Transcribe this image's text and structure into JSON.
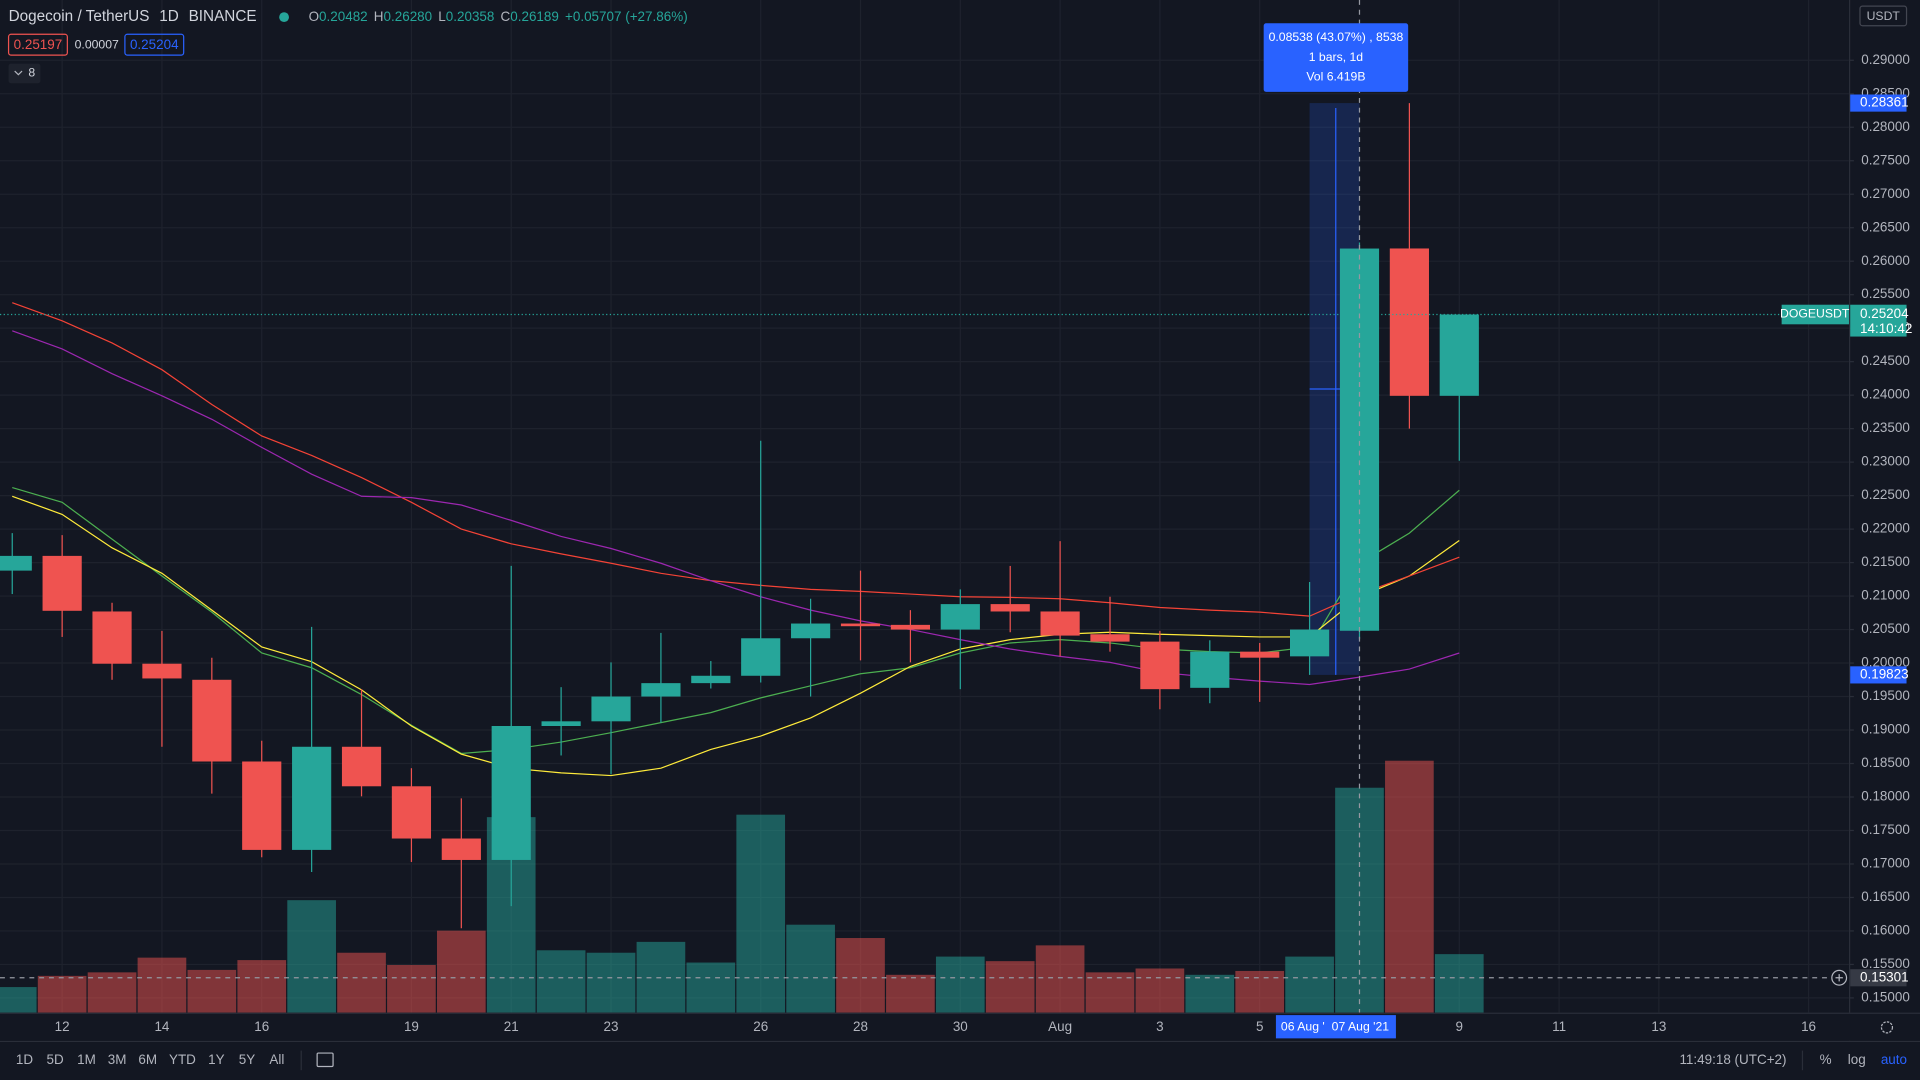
{
  "header": {
    "symbol": "Dogecoin / TetherUS",
    "interval": "1D",
    "exchange": "BINANCE",
    "ohlc": [
      {
        "key": "O",
        "value": "0.20482"
      },
      {
        "key": "H",
        "value": "0.26280"
      },
      {
        "key": "L",
        "value": "0.20358"
      },
      {
        "key": "C",
        "value": "0.26189"
      }
    ],
    "change": "+0.05707 (+27.86%)",
    "bid": "0.25197",
    "spread": "0.00007",
    "ask": "0.25204",
    "indicators": "8"
  },
  "toolbar": {
    "ranges": [
      "1D",
      "5D",
      "1M",
      "3M",
      "6M",
      "YTD",
      "1Y",
      "5Y",
      "All"
    ],
    "clock": "11:49:18 (UTC+2)",
    "percent": "%",
    "log": "log",
    "auto": "auto"
  },
  "chart_data": {
    "type": "candlestick",
    "currency": "USDT",
    "categories": [
      null,
      "12",
      null,
      "14",
      null,
      "16",
      null,
      null,
      "19",
      null,
      "21",
      null,
      "23",
      null,
      null,
      "26",
      null,
      "28",
      null,
      "30",
      null,
      "Aug",
      null,
      "3",
      null,
      "5",
      null,
      null,
      null,
      "9",
      null,
      "11",
      null,
      "13",
      null,
      null,
      "16"
    ],
    "open": [
      0.2138,
      0.216,
      0.2077,
      0.1999,
      0.1975,
      0.1853,
      0.1721,
      0.1875,
      0.1816,
      0.1738,
      0.1706,
      0.1906,
      0.1913,
      0.195,
      0.197,
      0.1981,
      0.2037,
      0.2059,
      0.2057,
      0.205,
      0.2088,
      0.2077,
      0.2043,
      0.2032,
      0.1963,
      0.2017,
      0.201,
      0.20482,
      0.2619,
      0.2399,
      null,
      null,
      null,
      null,
      null,
      null,
      null
    ],
    "high": [
      0.2194,
      0.2191,
      0.209,
      0.2048,
      0.2008,
      0.1884,
      0.2054,
      0.1961,
      0.1843,
      0.1798,
      0.2145,
      0.1964,
      0.2001,
      0.2045,
      0.2003,
      0.2332,
      0.2096,
      0.2138,
      0.2079,
      0.211,
      0.2145,
      0.2182,
      0.2099,
      0.2048,
      0.2034,
      0.203,
      0.2121,
      0.2628,
      0.2836,
      0.25204,
      null,
      null,
      null,
      null,
      null,
      null,
      null
    ],
    "low": [
      0.2103,
      0.2039,
      0.1975,
      0.1875,
      0.1805,
      0.171,
      0.1688,
      0.1801,
      0.1703,
      0.1604,
      0.1637,
      0.1862,
      0.1834,
      0.1911,
      0.1962,
      0.1971,
      0.195,
      0.2004,
      0.2001,
      0.1961,
      0.2046,
      0.201,
      0.2017,
      0.1931,
      0.194,
      0.1942,
      0.19823,
      0.20358,
      0.235,
      0.2302,
      null,
      null,
      null,
      null,
      null,
      null,
      null
    ],
    "close": [
      0.216,
      0.2078,
      0.1999,
      0.1977,
      0.1853,
      0.1721,
      0.1875,
      0.1816,
      0.1738,
      0.1706,
      0.1906,
      0.1913,
      0.195,
      0.197,
      0.1981,
      0.2037,
      0.2059,
      0.2055,
      0.205,
      0.2088,
      0.2077,
      0.2041,
      0.2032,
      0.1961,
      0.2017,
      0.2008,
      0.205,
      0.26189,
      0.2399,
      0.25204,
      null,
      null,
      null,
      null,
      null,
      null,
      null
    ],
    "volume": [
      0.73,
      1.05,
      1.15,
      1.57,
      1.22,
      1.5,
      3.21,
      1.71,
      1.36,
      2.34,
      5.58,
      1.78,
      1.71,
      2.02,
      1.43,
      5.65,
      2.51,
      2.13,
      1.08,
      1.6,
      1.47,
      1.92,
      1.15,
      1.26,
      1.08,
      1.19,
      1.6,
      6.419,
      7.19,
      1.67,
      null,
      null,
      null,
      null,
      null,
      null,
      null
    ],
    "volume_lim": [
      0,
      28.9
    ],
    "up_color": "#26a69a",
    "down_color": "#ef5350",
    "volume_up_color": "rgba(38,166,154,0.5)",
    "volume_down_color": "rgba(239,83,80,0.5)",
    "ma_lines": [
      {
        "color": "#4caf50",
        "values": [
          0.2262,
          0.224,
          0.2185,
          0.213,
          0.2076,
          0.2015,
          0.1993,
          0.1953,
          0.1907,
          0.1865,
          0.1871,
          0.1882,
          0.1896,
          0.1911,
          0.1926,
          0.1948,
          0.1966,
          0.1984,
          0.1993,
          0.2015,
          0.203,
          0.2035,
          0.203,
          0.2021,
          0.2017,
          0.2015,
          0.2024,
          0.2149,
          0.2194,
          0.2258,
          null,
          null,
          null,
          null,
          null,
          null,
          null
        ]
      },
      {
        "color": "#ffeb3b",
        "values": [
          0.2249,
          0.2222,
          0.2172,
          0.2134,
          0.2079,
          0.2024,
          0.2002,
          0.196,
          0.1906,
          0.1864,
          0.1843,
          0.1836,
          0.1832,
          0.1843,
          0.1871,
          0.1891,
          0.1918,
          0.1955,
          0.1995,
          0.2021,
          0.2035,
          0.2043,
          0.2046,
          0.2043,
          0.2041,
          0.2039,
          0.2039,
          0.2099,
          0.213,
          0.2183,
          null,
          null,
          null,
          null,
          null,
          null,
          null
        ]
      },
      {
        "color": "#f44336",
        "values": [
          0.2538,
          0.2511,
          0.2478,
          0.2438,
          0.2386,
          0.2339,
          0.231,
          0.2277,
          0.224,
          0.22,
          0.2178,
          0.2163,
          0.2149,
          0.2134,
          0.2123,
          0.2116,
          0.211,
          0.2107,
          0.2103,
          0.2099,
          0.2098,
          0.2096,
          0.209,
          0.2083,
          0.2079,
          0.2076,
          0.207,
          0.2103,
          0.213,
          0.2158,
          null,
          null,
          null,
          null,
          null,
          null,
          null
        ]
      },
      {
        "color": "#9c27b0",
        "values": [
          0.2496,
          0.2469,
          0.2432,
          0.2399,
          0.2364,
          0.2322,
          0.2282,
          0.2249,
          0.2247,
          0.2236,
          0.2213,
          0.2189,
          0.2171,
          0.2149,
          0.2123,
          0.2099,
          0.2079,
          0.2063,
          0.205,
          0.2035,
          0.2021,
          0.201,
          0.2001,
          0.1986,
          0.1979,
          0.1973,
          0.1968,
          0.1979,
          0.1991,
          0.2015,
          null,
          null,
          null,
          null,
          null,
          null,
          null
        ]
      }
    ],
    "ylim": [
      0.1478,
      0.299
    ],
    "yticks": [
      {
        "value": 0.15,
        "label": "0.15000"
      },
      {
        "value": 0.155,
        "label": "0.15500"
      },
      {
        "value": 0.16,
        "label": "0.16000"
      },
      {
        "value": 0.165,
        "label": "0.16500"
      },
      {
        "value": 0.17,
        "label": "0.17000"
      },
      {
        "value": 0.175,
        "label": "0.17500"
      },
      {
        "value": 0.18,
        "label": "0.18000"
      },
      {
        "value": 0.185,
        "label": "0.18500"
      },
      {
        "value": 0.19,
        "label": "0.19000"
      },
      {
        "value": 0.195,
        "label": "0.19500"
      },
      {
        "value": 0.2,
        "label": "0.20000"
      },
      {
        "value": 0.205,
        "label": "0.20500"
      },
      {
        "value": 0.21,
        "label": "0.21000"
      },
      {
        "value": 0.215,
        "label": "0.21500"
      },
      {
        "value": 0.22,
        "label": "0.22000"
      },
      {
        "value": 0.225,
        "label": "0.22500"
      },
      {
        "value": 0.23,
        "label": "0.23000"
      },
      {
        "value": 0.235,
        "label": "0.23500"
      },
      {
        "value": 0.24,
        "label": "0.24000"
      },
      {
        "value": 0.245,
        "label": "0.24500"
      },
      {
        "value": 0.25,
        "label": "0.25000"
      },
      {
        "value": 0.255,
        "label": "0.25500"
      },
      {
        "value": 0.26,
        "label": "0.26000"
      },
      {
        "value": 0.265,
        "label": "0.26500"
      },
      {
        "value": 0.27,
        "label": "0.27000"
      },
      {
        "value": 0.275,
        "label": "0.27500"
      },
      {
        "value": 0.28,
        "label": "0.28000"
      },
      {
        "value": 0.285,
        "label": "0.28500"
      },
      {
        "value": 0.29,
        "label": "0.29000"
      }
    ],
    "grid": true,
    "last_price": {
      "value": 0.25204,
      "ticker": "DOGEUSDT",
      "countdown": "14:10:42"
    },
    "crosshair_price": 0.15301,
    "cursor_dates": [
      "06 Aug '",
      "07 Aug '21"
    ],
    "measure": {
      "high": 0.28361,
      "low": 0.19823,
      "lines": [
        "0.08538 (43.07%) , 8538",
        "1 bars, 1d",
        "Vol 6.419B"
      ]
    }
  }
}
